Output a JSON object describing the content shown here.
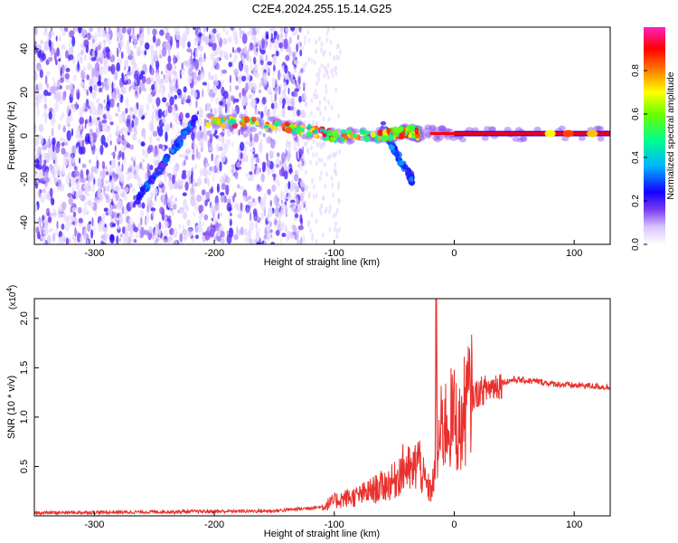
{
  "title": "C2E4.2024.255.15.14.G25",
  "chart_data": [
    {
      "type": "heatmap",
      "xlabel": "Height of straight line (km)",
      "ylabel": "Frequency (Hz)",
      "xlim": [
        -350,
        130
      ],
      "ylim": [
        -50,
        50
      ],
      "xticks": [
        -300,
        -200,
        -100,
        0,
        100
      ],
      "yticks": [
        -40,
        -20,
        0,
        20,
        40
      ],
      "colorbar": {
        "label": "Normalized spectral amplitude",
        "range": [
          0,
          1
        ],
        "ticks": [
          "0.0",
          "0.2",
          "0.4",
          "0.6",
          "0.8"
        ],
        "colors": [
          "#ffffff",
          "#b388ff",
          "#5b2be6",
          "#0000ff",
          "#00c8ff",
          "#00ff80",
          "#80ff00",
          "#ffff00",
          "#ff8000",
          "#ff0000",
          "#ff00ff"
        ]
      },
      "features": [
        {
          "name": "noise",
          "x_range": [
            -350,
            -125
          ],
          "freq_range": [
            -50,
            50
          ],
          "amplitude": 0.15
        },
        {
          "name": "sweep",
          "points": [
            [
              -265,
              -30
            ],
            [
              -215,
              8
            ]
          ],
          "amplitude": 0.35
        },
        {
          "name": "band",
          "points": [
            [
              -205,
              7
            ],
            [
              -150,
              5
            ],
            [
              -100,
              0
            ],
            [
              -60,
              0
            ],
            [
              -40,
              2
            ],
            [
              -30,
              1
            ],
            [
              0,
              1
            ],
            [
              130,
              1
            ]
          ],
          "amplitude": 0.9
        },
        {
          "name": "lower branch",
          "points": [
            [
              -60,
              5
            ],
            [
              -45,
              -12
            ],
            [
              -35,
              -20
            ]
          ],
          "amplitude": 0.35
        }
      ]
    },
    {
      "type": "line",
      "xlabel": "Height of straight line (km)",
      "ylabel": "SNR (10 * v/v)",
      "yscale_label": "(x10",
      "yscale_exp": "4",
      "xlim": [
        -350,
        130
      ],
      "ylim": [
        0,
        22000
      ],
      "xticks": [
        -300,
        -200,
        -100,
        0,
        100
      ],
      "yticks": [
        5000,
        10000,
        15000,
        20000
      ],
      "ytick_labels": [
        "0.5",
        "1.0",
        "1.5",
        "2.0"
      ],
      "color": "#e8302c",
      "series": [
        {
          "x": [
            -350,
            -250,
            -150,
            -110,
            -100,
            -90,
            -80,
            -70,
            -60,
            -50,
            -45,
            -40,
            -35,
            -30,
            -25,
            -20,
            -16,
            -15,
            -14,
            -12,
            -10,
            -5,
            0,
            5,
            10,
            20,
            30,
            40,
            50,
            60,
            70,
            80,
            90,
            100,
            110,
            120,
            130
          ],
          "y": [
            300,
            400,
            500,
            900,
            1500,
            1800,
            2000,
            2500,
            3000,
            3500,
            4500,
            5000,
            4200,
            6000,
            3500,
            2500,
            4000,
            22500,
            5500,
            8000,
            9000,
            9500,
            10000,
            8500,
            11500,
            12500,
            13000,
            13500,
            13800,
            13700,
            13600,
            13400,
            13300,
            13200,
            13200,
            13100,
            13000
          ]
        }
      ]
    }
  ]
}
